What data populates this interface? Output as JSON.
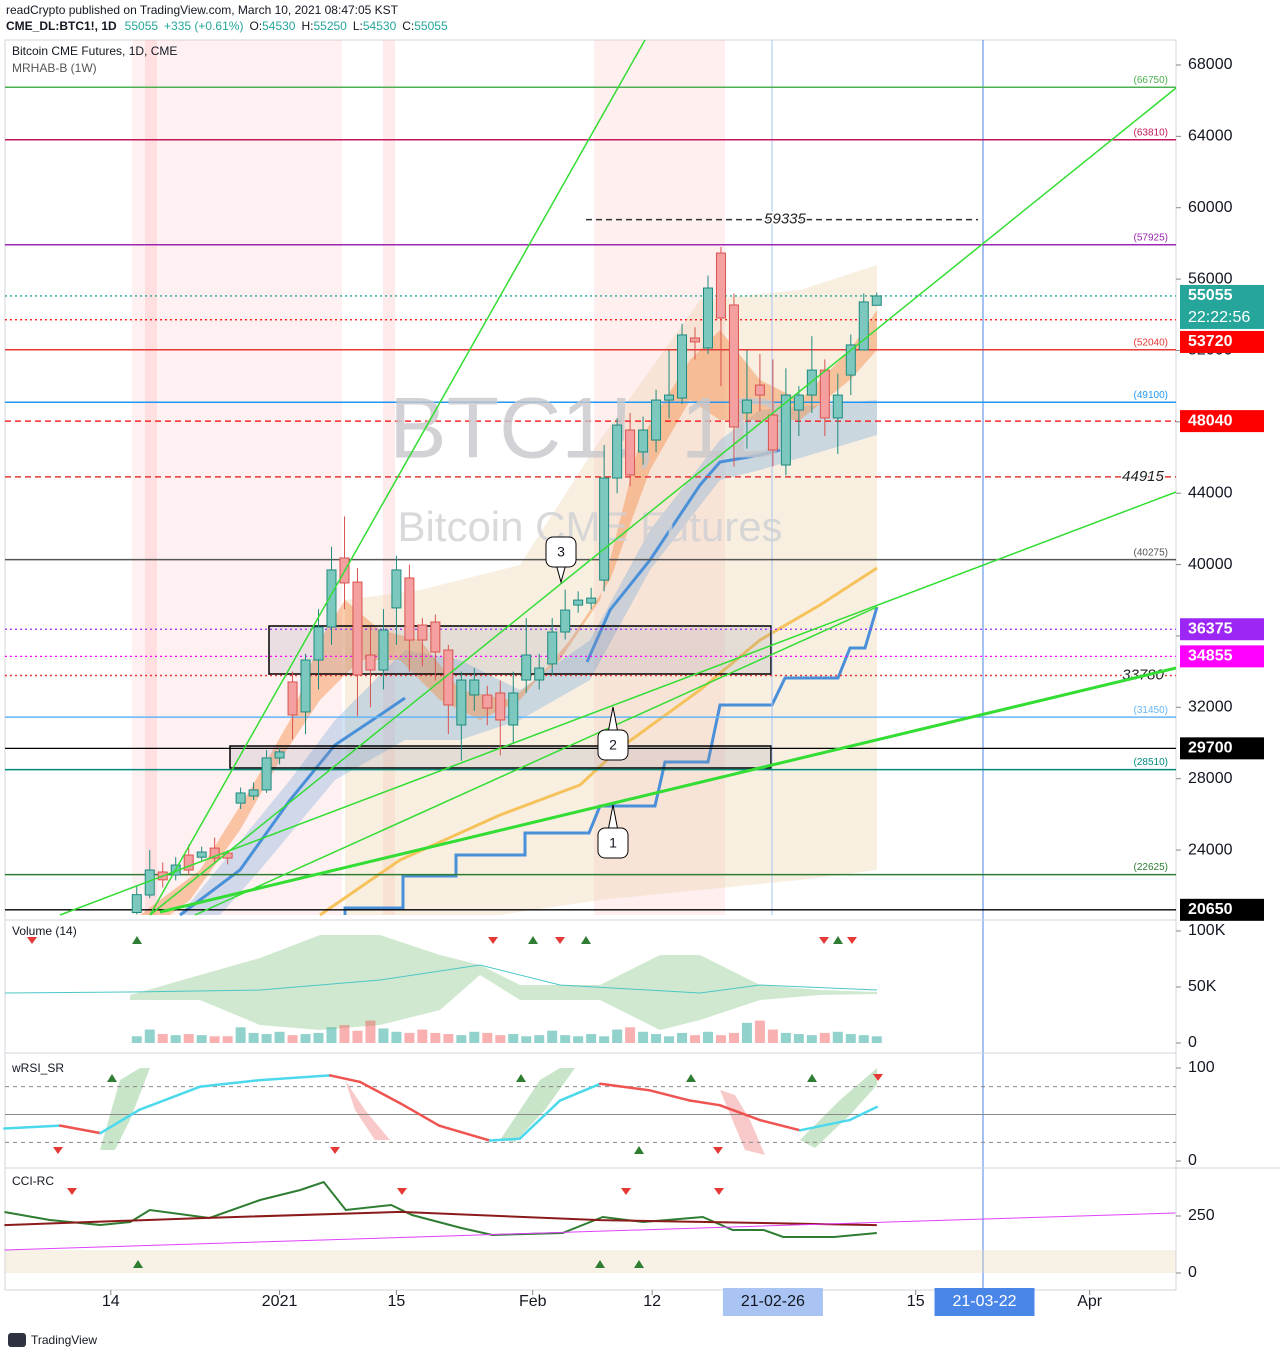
{
  "header": {
    "line1": "readCrypto published on TradingView.com, March 10, 2021 08:47:05 KST",
    "symbol": "CME_DL:BTC1!, 1D",
    "last": "55055",
    "change": "+335 (+0.61%)",
    "ohlc": [
      {
        "key": "O:",
        "value": "54530"
      },
      {
        "key": "H:",
        "value": "55250"
      },
      {
        "key": "L:",
        "value": "54530"
      },
      {
        "key": "C:",
        "value": "55055"
      }
    ]
  },
  "watermark": {
    "symbol": "BTC1!, 1D",
    "name": "Bitcoin CME Futures"
  },
  "footer": "TradingView",
  "chart_data": [
    {
      "type": "candlestick",
      "title": "Bitcoin CME Futures, 1D, CME",
      "subtitle": "MRHAB-B (1W)",
      "colors": {
        "up": "#7cc8bf",
        "down": "#f4a0a0",
        "up_edge": "#1e8a7e",
        "down_edge": "#d9534f"
      },
      "x": [
        2,
        3,
        4,
        5,
        6,
        7,
        8,
        9,
        10,
        11,
        12,
        13,
        14,
        15,
        16,
        17,
        18,
        19,
        20,
        21,
        22,
        23,
        24,
        25,
        26,
        27,
        28,
        29,
        30,
        31,
        32,
        33,
        34,
        35,
        36,
        37,
        38,
        39,
        40,
        41,
        42,
        43,
        44,
        45,
        46,
        47,
        48,
        49,
        50,
        51,
        52,
        53,
        54,
        55,
        56,
        57,
        58,
        59
      ],
      "open": [
        20500,
        21480,
        22770,
        22600,
        23720,
        23600,
        24110,
        23830,
        26630,
        27030,
        27370,
        29160,
        33420,
        31740,
        34650,
        36500,
        40370,
        39020,
        34930,
        34090,
        37570,
        39250,
        36610,
        36780,
        35210,
        31010,
        32690,
        32690,
        32800,
        31010,
        33530,
        33530,
        34430,
        36220,
        37730,
        37840,
        39130,
        44850,
        47540,
        46310,
        46980,
        49220,
        49330,
        52700,
        52140,
        57460,
        54550,
        48500,
        50060,
        48380,
        45580,
        48660,
        49500,
        50900,
        48220,
        50620,
        52030,
        54530
      ],
      "high": [
        22000,
        24000,
        23300,
        23600,
        24300,
        24200,
        24700,
        24000,
        27500,
        27800,
        29600,
        29700,
        34000,
        35000,
        37500,
        41000,
        42700,
        39800,
        36500,
        37500,
        40500,
        40000,
        37000,
        37200,
        35500,
        34000,
        34200,
        33200,
        33500,
        34000,
        37000,
        35000,
        37000,
        38600,
        38500,
        38700,
        46700,
        48200,
        48500,
        48300,
        49800,
        52000,
        53500,
        53300,
        56200,
        57800,
        55200,
        52000,
        51800,
        51500,
        51000,
        50000,
        52800,
        51500,
        50700,
        52900,
        55200,
        55250
      ],
      "low": [
        20400,
        21300,
        21900,
        22300,
        22600,
        23400,
        23300,
        23200,
        26300,
        26800,
        27200,
        28800,
        30200,
        30500,
        33000,
        35500,
        37500,
        31500,
        32000,
        33000,
        35500,
        34000,
        34300,
        33500,
        30500,
        29000,
        31800,
        31000,
        29300,
        30000,
        32800,
        33000,
        33800,
        35800,
        37300,
        37500,
        38500,
        44000,
        44400,
        45600,
        46300,
        48200,
        49000,
        51500,
        51800,
        50000,
        45500,
        46500,
        48600,
        45500,
        45000,
        47200,
        48500,
        47200,
        46200,
        49500,
        52000,
        54530
      ],
      "close": [
        21500,
        22880,
        22330,
        23160,
        22880,
        23890,
        23550,
        23550,
        27200,
        27370,
        29160,
        29500,
        31570,
        34650,
        36500,
        39700,
        38970,
        33810,
        34090,
        36330,
        39700,
        35770,
        35770,
        35100,
        32130,
        33530,
        33530,
        31960,
        31290,
        32800,
        34930,
        34200,
        36220,
        37450,
        38010,
        38120,
        44850,
        47820,
        45020,
        47540,
        49220,
        49500,
        52870,
        52480,
        55500,
        53820,
        47710,
        49220,
        49500,
        46420,
        49500,
        49500,
        50900,
        48220,
        49500,
        52310,
        54720,
        55055
      ],
      "xlim": [
        -8.15,
        82.05
      ],
      "xticks": [
        {
          "value": 0,
          "label": "14"
        },
        {
          "value": 13,
          "label": "2021"
        },
        {
          "value": 22,
          "label": "15"
        },
        {
          "value": 32.5,
          "label": "Feb"
        },
        {
          "value": 41.7,
          "label": "12"
        },
        {
          "value": 51,
          "label": "21-02-26",
          "highlight": "#a9c4f2"
        },
        {
          "value": 62,
          "label": "15"
        },
        {
          "value": 67.3,
          "label": "21-03-22",
          "highlight": "#4a86e8"
        },
        {
          "value": 75.4,
          "label": "Apr"
        }
      ],
      "ylim": [
        20360,
        69400
      ],
      "yticks": [
        24000,
        28000,
        32000,
        36000,
        40000,
        44000,
        48000,
        52000,
        56000,
        60000,
        64000,
        68000
      ],
      "levels": [
        {
          "value": 66750,
          "label": "(66750)",
          "color": "#4caf50"
        },
        {
          "value": 63810,
          "label": "(63810)",
          "color": "#c2185b"
        },
        {
          "value": 57925,
          "label": "(57925)",
          "color": "#9c27b0"
        },
        {
          "value": 52040,
          "label": "(52040)",
          "color": "#e53935"
        },
        {
          "value": 49100,
          "label": "(49100)",
          "color": "#2196f3"
        },
        {
          "value": 40275,
          "label": "(40275)",
          "color": "#555555"
        },
        {
          "value": 31450,
          "label": "(31450)",
          "color": "#64b5f6"
        },
        {
          "value": 28510,
          "label": "(28510)",
          "color": "#00897b"
        },
        {
          "value": 22625,
          "label": "(22625)",
          "color": "#2e7d32"
        }
      ],
      "price_tags": [
        {
          "value": 55055,
          "color": "#26a69a",
          "line": "dotted",
          "countdown": "22:22:56"
        },
        {
          "value": 53720,
          "color": "#ff0000",
          "line": "dotted"
        },
        {
          "value": 48040,
          "color": "#ff0000",
          "line": "dashed"
        },
        {
          "value": 36375,
          "color": "#9c27f5",
          "line": "dotted"
        },
        {
          "value": 34855,
          "color": "#ff00ff",
          "line": "dotted"
        },
        {
          "value": 29700,
          "color": "#000000",
          "line": "solid"
        },
        {
          "value": 20650,
          "color": "#000000",
          "line": "solid"
        }
      ],
      "marked_levels": [
        {
          "value": 59335,
          "color": "#333333",
          "line": "dashed"
        },
        {
          "value": 44915,
          "color": "#e53935",
          "line": "dashed"
        },
        {
          "value": 33780,
          "color": "#e53935",
          "line": "dotted"
        }
      ],
      "callouts": [
        "3",
        "2",
        "1"
      ]
    },
    {
      "type": "bar",
      "title": "Volume (14)",
      "x": [
        2,
        3,
        4,
        5,
        6,
        7,
        8,
        9,
        10,
        11,
        12,
        13,
        14,
        15,
        16,
        17,
        18,
        19,
        20,
        21,
        22,
        23,
        24,
        25,
        26,
        27,
        28,
        29,
        30,
        31,
        32,
        33,
        34,
        35,
        36,
        37,
        38,
        39,
        40,
        41,
        42,
        43,
        44,
        45,
        46,
        47,
        48,
        49,
        50,
        51,
        52,
        53,
        54,
        55,
        56,
        57,
        58,
        59
      ],
      "values": [
        6000,
        12000,
        8000,
        7000,
        8000,
        7000,
        6000,
        6000,
        14000,
        9000,
        8000,
        10000,
        7000,
        8000,
        9000,
        14000,
        16000,
        11000,
        20000,
        13000,
        10000,
        9000,
        12000,
        9000,
        8000,
        7000,
        10000,
        9000,
        7000,
        8000,
        6000,
        7000,
        11000,
        7000,
        6000,
        8000,
        6000,
        12000,
        14000,
        10000,
        8000,
        6000,
        9000,
        7000,
        10000,
        7000,
        9000,
        18000,
        20000,
        12000,
        9000,
        8000,
        7000,
        9000,
        10000,
        8000,
        7000,
        6000
      ],
      "ylim": [
        -6250,
        109800
      ],
      "yticks": [
        {
          "value": 100000,
          "label": "100K"
        },
        {
          "value": 50000,
          "label": "50K"
        },
        0
      ]
    },
    {
      "type": "line",
      "title": "wRSI_SR",
      "series": [
        {
          "colors": {
            "rising": "#4dd9ec",
            "falling": "#ef5350"
          },
          "x": [
            -8.2,
            -3.9,
            -0.8,
            2.2,
            6.9,
            11.5,
            16.9,
            19.2,
            22.3,
            25.3,
            29.2,
            31.5,
            34.6,
            37.7,
            41.5,
            44.6,
            46.9,
            50,
            53.1,
            56.9,
            59
          ],
          "values": [
            35,
            38,
            30,
            55,
            80,
            87,
            92,
            85,
            62,
            38,
            22,
            24,
            65,
            83,
            76,
            65,
            60,
            44,
            33,
            44,
            58
          ]
        }
      ],
      "levels": [
        80,
        50,
        20
      ],
      "ylim": [
        -7.5,
        111.8
      ],
      "yticks": [
        100,
        0
      ]
    },
    {
      "type": "line",
      "title": "CCI-RC",
      "series": [
        {
          "color": "#2e7d32",
          "x": [
            -8.2,
            -4.7,
            -0.8,
            1.5,
            3.0,
            7.6,
            11.5,
            14.6,
            16.4,
            18.1,
            21.6,
            23.2,
            27.0,
            29.4,
            34.8,
            37.9,
            41.0,
            45.6,
            47.9,
            50.3,
            51.8,
            55.7,
            59
          ],
          "values": [
            267.5,
            232.5,
            210.5,
            223.7,
            276.3,
            241.2,
            320.2,
            364,
            399.1,
            276.3,
            298.2,
            254.4,
            197.4,
            166.7,
            175.4,
            245.6,
            223.7,
            245.6,
            188.6,
            188.6,
            157.9,
            157.9,
            175.4
          ]
        },
        {
          "color": "#8b1a1a",
          "x": [
            -8.2,
            6.9,
            22.3,
            37.7,
            59
          ],
          "values": [
            210,
            241,
            268,
            232,
            210
          ]
        },
        {
          "color": "#e040fb",
          "x": [
            -8.2,
            82
          ],
          "values": [
            101,
            263
          ]
        }
      ],
      "ylim": [
        -74.6,
        451.8
      ],
      "yticks": [
        250,
        0
      ]
    }
  ]
}
